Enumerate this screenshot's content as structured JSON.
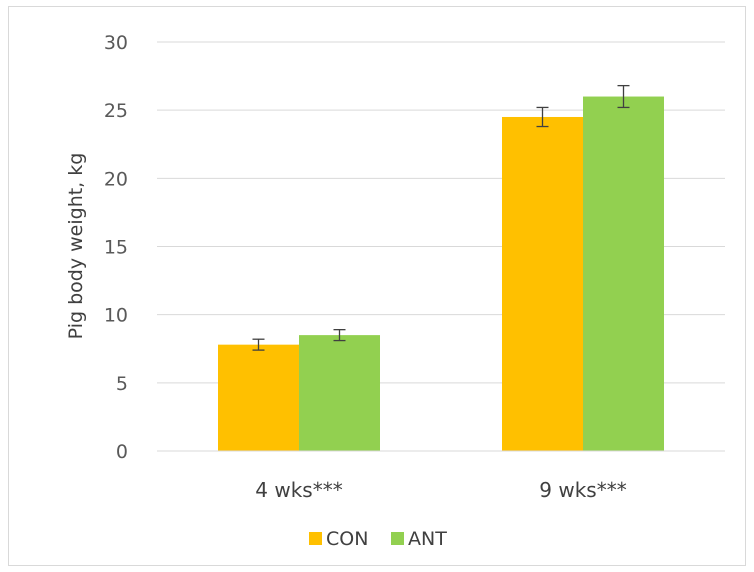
{
  "chart_data": {
    "type": "bar",
    "title": "",
    "xlabel": "",
    "ylabel": "Pig body weight, kg",
    "ylim": [
      0,
      30
    ],
    "yticks": [
      0,
      5,
      10,
      15,
      20,
      25,
      30
    ],
    "grid": true,
    "legend_position": "bottom",
    "categories": [
      "4 wks***",
      "9 wks***"
    ],
    "series": [
      {
        "name": "CON",
        "color": "#FFC000",
        "values": [
          7.8,
          24.5
        ],
        "error": [
          0.4,
          0.7
        ]
      },
      {
        "name": "ANT",
        "color": "#92D050",
        "values": [
          8.5,
          26.0
        ],
        "error": [
          0.4,
          0.8
        ]
      }
    ]
  }
}
